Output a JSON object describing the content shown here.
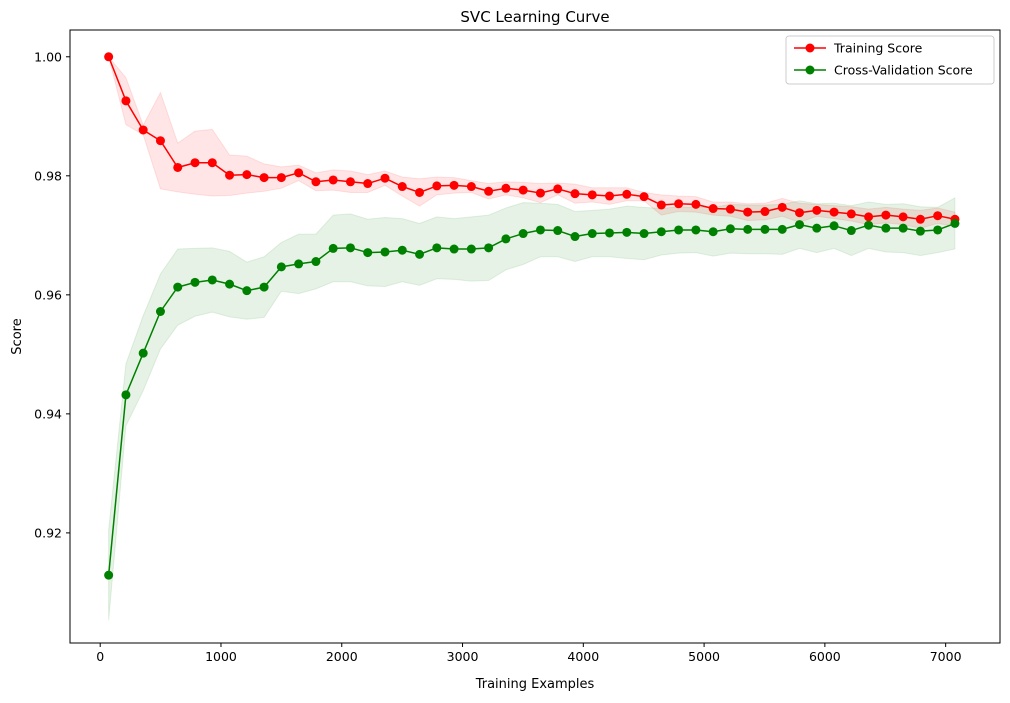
{
  "chart_data": {
    "type": "line",
    "title": "SVC Learning Curve",
    "xlabel": "Training Examples",
    "ylabel": "Score",
    "xlim": [
      -250,
      7450
    ],
    "ylim": [
      0.9015,
      1.0045
    ],
    "xticks": [
      0,
      1000,
      2000,
      3000,
      4000,
      5000,
      6000,
      7000
    ],
    "yticks": [
      0.92,
      0.94,
      0.96,
      0.98,
      1.0
    ],
    "xtick_labels": [
      "0",
      "1000",
      "2000",
      "3000",
      "4000",
      "5000",
      "6000",
      "7000"
    ],
    "ytick_labels": [
      "0.92",
      "0.94",
      "0.96",
      "0.98",
      "1.00"
    ],
    "grid": false,
    "legend_position": "top-right",
    "x": [
      70,
      213,
      356,
      499,
      642,
      785,
      928,
      1071,
      1214,
      1357,
      1500,
      1643,
      1786,
      1929,
      2072,
      2215,
      2358,
      2501,
      2644,
      2787,
      2930,
      3073,
      3216,
      3359,
      3502,
      3645,
      3788,
      3931,
      4074,
      4217,
      4360,
      4503,
      4646,
      4789,
      4932,
      5075,
      5218,
      5361,
      5504,
      5647,
      5790,
      5933,
      6076,
      6219,
      6362,
      6505,
      6648,
      6791,
      6934,
      7077
    ],
    "series": [
      {
        "name": "Training Score",
        "color": "#ff0000",
        "band_color": "#ff0000",
        "values": [
          1.0,
          0.9926,
          0.9877,
          0.9859,
          0.9814,
          0.9822,
          0.9822,
          0.9801,
          0.9802,
          0.9797,
          0.9797,
          0.9805,
          0.979,
          0.9793,
          0.979,
          0.9787,
          0.9796,
          0.9782,
          0.9772,
          0.9783,
          0.9784,
          0.9782,
          0.9774,
          0.9779,
          0.9776,
          0.9771,
          0.9778,
          0.977,
          0.9768,
          0.9766,
          0.9769,
          0.9765,
          0.9751,
          0.9753,
          0.9752,
          0.9745,
          0.9744,
          0.9739,
          0.974,
          0.9747,
          0.9738,
          0.9742,
          0.9739,
          0.9736,
          0.9731,
          0.9734,
          0.9731,
          0.9727,
          0.9733,
          0.9727
        ],
        "band_upper": [
          1.0,
          0.9965,
          0.9885,
          0.994,
          0.9855,
          0.9875,
          0.9878,
          0.9835,
          0.9833,
          0.982,
          0.9815,
          0.9818,
          0.9805,
          0.981,
          0.9808,
          0.9802,
          0.9808,
          0.9798,
          0.9795,
          0.9798,
          0.9797,
          0.9792,
          0.9787,
          0.979,
          0.9789,
          0.9787,
          0.9788,
          0.9786,
          0.978,
          0.978,
          0.978,
          0.9772,
          0.9768,
          0.9766,
          0.9765,
          0.9756,
          0.9756,
          0.9753,
          0.9754,
          0.9762,
          0.9754,
          0.9752,
          0.975,
          0.9748,
          0.9744,
          0.9747,
          0.9744,
          0.9742,
          0.9746,
          0.9739
        ],
        "band_lower": [
          1.0,
          0.9886,
          0.9869,
          0.9778,
          0.9773,
          0.9769,
          0.9766,
          0.9767,
          0.9771,
          0.9774,
          0.9779,
          0.9792,
          0.9775,
          0.9776,
          0.9772,
          0.9772,
          0.9784,
          0.9766,
          0.9749,
          0.9768,
          0.9771,
          0.9772,
          0.9761,
          0.9768,
          0.9763,
          0.9755,
          0.9768,
          0.9754,
          0.9756,
          0.9752,
          0.9758,
          0.9758,
          0.9734,
          0.974,
          0.9739,
          0.9734,
          0.9732,
          0.9725,
          0.9726,
          0.9732,
          0.9722,
          0.9732,
          0.9728,
          0.9724,
          0.9718,
          0.9721,
          0.9718,
          0.9712,
          0.972,
          0.9715
        ]
      },
      {
        "name": "Cross-Validation Score",
        "color": "#008000",
        "band_color": "#008000",
        "values": [
          0.9129,
          0.9432,
          0.9502,
          0.9572,
          0.9613,
          0.9621,
          0.9625,
          0.9618,
          0.9607,
          0.9613,
          0.9647,
          0.9652,
          0.9656,
          0.9678,
          0.9679,
          0.9671,
          0.9672,
          0.9675,
          0.9668,
          0.9679,
          0.9677,
          0.9677,
          0.9679,
          0.9694,
          0.9703,
          0.9709,
          0.9708,
          0.9698,
          0.9703,
          0.9704,
          0.9705,
          0.9703,
          0.9706,
          0.9709,
          0.9709,
          0.9706,
          0.9711,
          0.971,
          0.971,
          0.971,
          0.9718,
          0.9712,
          0.9716,
          0.9708,
          0.9717,
          0.9712,
          0.9712,
          0.9707,
          0.9709,
          0.972
        ],
        "band_upper": [
          0.9205,
          0.9484,
          0.9565,
          0.9635,
          0.9677,
          0.9678,
          0.9679,
          0.9673,
          0.9655,
          0.9664,
          0.9688,
          0.9702,
          0.9702,
          0.9734,
          0.9736,
          0.9727,
          0.973,
          0.9728,
          0.972,
          0.9731,
          0.9728,
          0.9731,
          0.9734,
          0.9746,
          0.9755,
          0.9754,
          0.9752,
          0.974,
          0.9742,
          0.9744,
          0.9749,
          0.9747,
          0.9745,
          0.9748,
          0.9747,
          0.9747,
          0.9752,
          0.9751,
          0.9751,
          0.9752,
          0.9758,
          0.9753,
          0.9754,
          0.975,
          0.9756,
          0.9752,
          0.9753,
          0.9748,
          0.9747,
          0.9763
        ],
        "band_lower": [
          0.9053,
          0.938,
          0.9439,
          0.9509,
          0.9549,
          0.9564,
          0.9571,
          0.9563,
          0.9559,
          0.9562,
          0.9606,
          0.9602,
          0.961,
          0.9622,
          0.9622,
          0.9615,
          0.9614,
          0.9622,
          0.9616,
          0.9627,
          0.9626,
          0.9623,
          0.9624,
          0.9642,
          0.9651,
          0.9664,
          0.9664,
          0.9656,
          0.9664,
          0.9664,
          0.9661,
          0.9659,
          0.9667,
          0.967,
          0.9671,
          0.9665,
          0.967,
          0.9669,
          0.9669,
          0.9668,
          0.9678,
          0.9671,
          0.9678,
          0.9666,
          0.9678,
          0.9672,
          0.9671,
          0.9666,
          0.9671,
          0.9677
        ]
      }
    ]
  }
}
